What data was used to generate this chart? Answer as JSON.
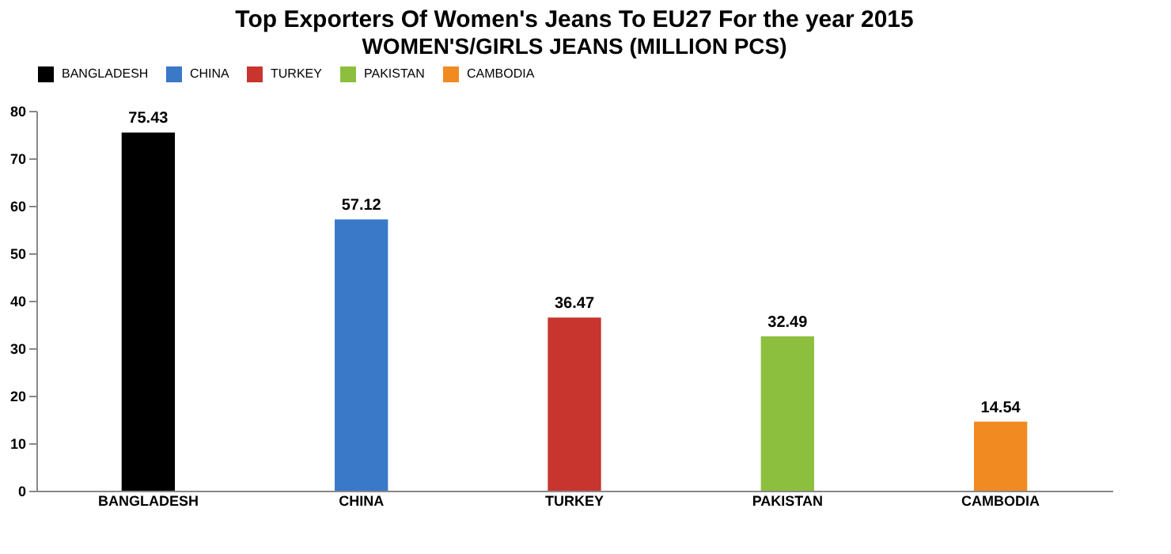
{
  "chart_data": {
    "type": "bar",
    "title": "Top Exporters Of Women's Jeans To EU27 For the year 2015",
    "subtitle": "WOMEN'S/GIRLS  JEANS (MILLION PCS)",
    "categories": [
      "BANGLADESH",
      "CHINA",
      "TURKEY",
      "PAKISTAN",
      "CAMBODIA"
    ],
    "series": [
      {
        "name": "BANGLADESH",
        "color": "#000000",
        "values": [
          75.43,
          null,
          null,
          null,
          null
        ]
      },
      {
        "name": "CHINA",
        "color": "#3a78c8",
        "values": [
          null,
          57.12,
          null,
          null,
          null
        ]
      },
      {
        "name": "TURKEY",
        "color": "#c8352f",
        "values": [
          null,
          null,
          36.47,
          null,
          null
        ]
      },
      {
        "name": "PAKISTAN",
        "color": "#8dbf3e",
        "values": [
          null,
          null,
          null,
          32.49,
          null
        ]
      },
      {
        "name": "CAMBODIA",
        "color": "#f28a22",
        "values": [
          null,
          null,
          null,
          null,
          14.54
        ]
      }
    ],
    "ylim": [
      0,
      80
    ],
    "yticks": [
      0,
      10,
      20,
      30,
      40,
      50,
      60,
      70,
      80
    ],
    "data_labels": true,
    "legend": "top",
    "grid": false
  }
}
